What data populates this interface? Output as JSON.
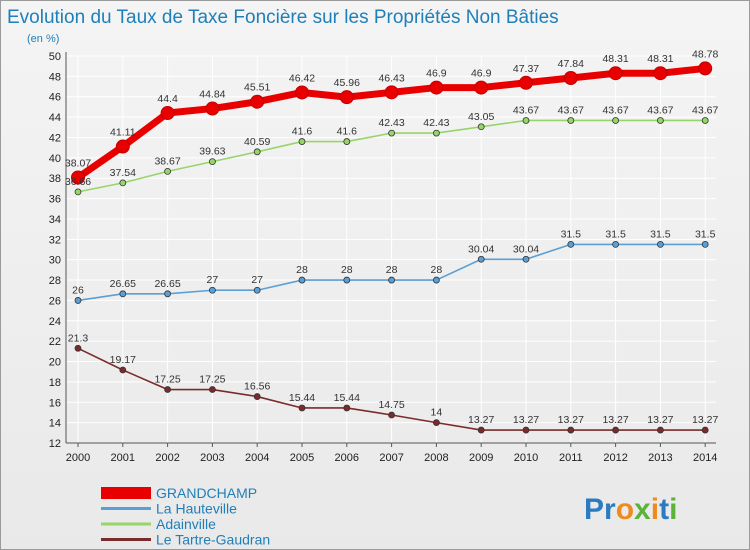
{
  "colors": {
    "title": "#1f7fb9",
    "background": "#ececec",
    "grid": "#ffffff",
    "axis": "#555555"
  },
  "logo": {
    "text": "Proxiti",
    "letters": [
      "P",
      "r",
      "o",
      "x",
      "i",
      "t",
      "i"
    ],
    "letter_colors": [
      "#2b7bc0",
      "#2b7bc0",
      "#f08a1c",
      "#5bb33a",
      "#f08a1c",
      "#2b7bc0",
      "#5bb33a"
    ]
  },
  "chart_data": {
    "type": "line",
    "title": "Evolution du Taux de Taxe Foncière sur les Propriétés Non Bâties",
    "ylabel": "(en %)",
    "xlabel": "",
    "ylim": [
      12,
      50
    ],
    "yticks": [
      12,
      14,
      16,
      18,
      20,
      22,
      24,
      26,
      28,
      30,
      32,
      34,
      36,
      38,
      40,
      42,
      44,
      46,
      48,
      50
    ],
    "grid": true,
    "legend_position": "bottom-left",
    "x": [
      "2000",
      "2001",
      "2002",
      "2003",
      "2004",
      "2005",
      "2006",
      "2007",
      "2008",
      "2009",
      "2010",
      "2011",
      "2012",
      "2013",
      "2014"
    ],
    "series": [
      {
        "name": "GRANDCHAMP",
        "color": "#e80000",
        "values": [
          38.07,
          41.11,
          44.4,
          44.84,
          45.51,
          46.42,
          45.96,
          46.43,
          46.9,
          46.9,
          47.37,
          47.84,
          48.31,
          48.31,
          48.78
        ],
        "labels": [
          "38.07",
          "41.11",
          "44.4",
          "44.84",
          "45.51",
          "46.42",
          "45.96",
          "46.43",
          "46.9",
          "46.9",
          "47.37",
          "47.84",
          "48.31",
          "48.31",
          "48.78"
        ]
      },
      {
        "name": "La Hauteville",
        "color": "#5b9fd4",
        "values": [
          26,
          26.65,
          26.65,
          27,
          27,
          28,
          28,
          28,
          28,
          30.04,
          30.04,
          31.5,
          31.5,
          31.5,
          31.5
        ],
        "labels": [
          "26",
          "26.65",
          "26.65",
          "27",
          "27",
          "28",
          "28",
          "28",
          "28",
          "30.04",
          "30.04",
          "31.5",
          "31.5",
          "31.5",
          "31.5"
        ]
      },
      {
        "name": "Adainville",
        "color": "#97d46a",
        "values": [
          36.66,
          37.54,
          38.67,
          39.63,
          40.59,
          41.6,
          41.6,
          42.43,
          42.43,
          43.05,
          43.67,
          43.67,
          43.67,
          43.67,
          43.67
        ],
        "labels": [
          "36.66",
          "37.54",
          "38.67",
          "39.63",
          "40.59",
          "41.6",
          "41.6",
          "42.43",
          "42.43",
          "43.05",
          "43.67",
          "43.67",
          "43.67",
          "43.67",
          "43.67"
        ]
      },
      {
        "name": "Le Tartre-Gaudran",
        "color": "#7a2b2b",
        "values": [
          21.3,
          19.17,
          17.25,
          17.25,
          16.56,
          15.44,
          15.44,
          14.75,
          14,
          13.27,
          13.27,
          13.27,
          13.27,
          13.27,
          13.27
        ],
        "labels": [
          "21.3",
          "19.17",
          "17.25",
          "17.25",
          "16.56",
          "15.44",
          "15.44",
          "14.75",
          "14",
          "13.27",
          "13.27",
          "13.27",
          "13.27",
          "13.27",
          "13.27"
        ]
      }
    ]
  }
}
